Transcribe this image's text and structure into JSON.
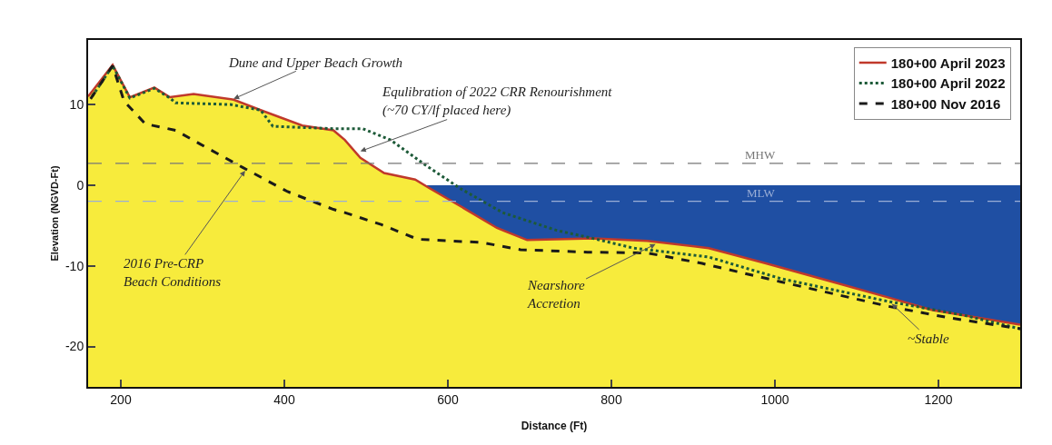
{
  "chart_data": {
    "type": "line",
    "xlabel": "Distance (Ft)",
    "ylabel": "Elevation (NGVD-Ft)",
    "xlim": [
      160,
      1300
    ],
    "xticks": [
      200,
      400,
      600,
      800,
      1000,
      1200
    ],
    "ylim": [
      -25,
      18
    ],
    "yticks": [
      -20,
      -10,
      0,
      10
    ],
    "grid": false,
    "legend": "top right",
    "series": [
      {
        "type": "area",
        "name": "180+00 April 2023",
        "color": "#c0392b",
        "line_style": "solid",
        "x": [
          160,
          190,
          211,
          241,
          260,
          289,
          338,
          371,
          422,
          460,
          474,
          493,
          522,
          560,
          578,
          622,
          660,
          697,
          778,
          844,
          919,
          989,
          1082,
          1138,
          1193,
          1300
        ],
        "values": [
          11,
          14.9,
          10.9,
          12.1,
          10.9,
          11.3,
          10.6,
          9.3,
          7.4,
          6.8,
          5.6,
          3.4,
          1.5,
          0.7,
          -0.4,
          -3,
          -5.3,
          -6.8,
          -6.6,
          -6.9,
          -7.8,
          -9.7,
          -12.3,
          -13.9,
          -15.5,
          -17.3
        ]
      },
      {
        "name": "180+00 April 2022",
        "color": "#1d5a38",
        "line_style": "dotted",
        "x": [
          165,
          190,
          211,
          241,
          260,
          267,
          334,
          371,
          386,
          460,
          496,
          530,
          571,
          615,
          667,
          733,
          782,
          827,
          919,
          1008,
          1138,
          1230,
          1300
        ],
        "values": [
          11,
          14.8,
          10.8,
          12,
          10.8,
          10.2,
          10,
          9.3,
          7.3,
          7,
          7,
          5.6,
          2.6,
          -0.4,
          -3.4,
          -5.6,
          -6.7,
          -7.8,
          -8.9,
          -11.6,
          -14.4,
          -16.1,
          -17.8
        ]
      },
      {
        "name": "180+00 Nov 2016",
        "color": "#1a1a1a",
        "line_style": "dashed",
        "x": [
          163,
          190,
          204,
          230,
          267,
          297,
          349,
          404,
          460,
          474,
          519,
          563,
          641,
          689,
          771,
          844,
          911,
          1008,
          1138,
          1211,
          1300
        ],
        "values": [
          10.7,
          14.8,
          10.4,
          7.6,
          6.8,
          5.1,
          2.2,
          -0.8,
          -3,
          -3.4,
          -4.9,
          -6.7,
          -7.1,
          -8,
          -8.3,
          -8.4,
          -9.7,
          -12,
          -15,
          -16.4,
          -17.8
        ]
      }
    ],
    "bands": [
      {
        "axis": "y",
        "from": -25,
        "to": 0,
        "color": "#1f4fa3"
      }
    ],
    "ref_lines": [
      {
        "axis": "y",
        "value": 2.7,
        "label": "MHW",
        "color": "#777777",
        "line_style": "dashed"
      },
      {
        "axis": "y",
        "value": -2,
        "label": "MLW",
        "color": "#9aaed6",
        "line_style": "dashed"
      }
    ],
    "annotations": [
      {
        "text": "Dune and Upper Beach Growth",
        "x": 338,
        "y": 10.7
      },
      {
        "text": "Equlibration of 2022 CRR Renourishment\n(~70 CY/lf placed here)",
        "x": 493,
        "y": 4.2
      },
      {
        "text": "2016 Pre-CRP\nBeach Conditions",
        "x": 352,
        "y": 1.8
      },
      {
        "text": "Nearshore\nAccretion",
        "x": 854,
        "y": -7.3
      },
      {
        "text": "~Stable",
        "x": 1143,
        "y": -14.7
      }
    ]
  }
}
